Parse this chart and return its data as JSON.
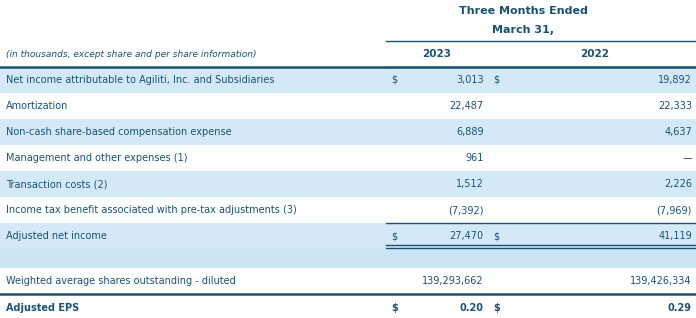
{
  "header_line1": "Three Months Ended",
  "header_line2": "March 31,",
  "col_header_label": "(in thousands, except share and per share information)",
  "col_2023": "2023",
  "col_2022": "2022",
  "rows": [
    {
      "label": "Net income attributable to Agiliti, Inc. and Subsidiaries",
      "dollar_sign_2023": "$",
      "val_2023": "3,013",
      "dollar_sign_2022": "$",
      "val_2022": "19,892",
      "highlight": true,
      "bold": false,
      "top_border": true
    },
    {
      "label": "Amortization",
      "dollar_sign_2023": "",
      "val_2023": "22,487",
      "dollar_sign_2022": "",
      "val_2022": "22,333",
      "highlight": false,
      "bold": false,
      "top_border": false
    },
    {
      "label": "Non-cash share-based compensation expense",
      "dollar_sign_2023": "",
      "val_2023": "6,889",
      "dollar_sign_2022": "",
      "val_2022": "4,637",
      "highlight": true,
      "bold": false,
      "top_border": false
    },
    {
      "label": "Management and other expenses (1)",
      "dollar_sign_2023": "",
      "val_2023": "961",
      "dollar_sign_2022": "",
      "val_2022": "—",
      "highlight": false,
      "bold": false,
      "top_border": false
    },
    {
      "label": "Transaction costs (2)",
      "dollar_sign_2023": "",
      "val_2023": "1,512",
      "dollar_sign_2022": "",
      "val_2022": "2,226",
      "highlight": true,
      "bold": false,
      "top_border": false
    },
    {
      "label": "Income tax benefit associated with pre-tax adjustments (3)",
      "dollar_sign_2023": "",
      "val_2023": "(7,392)",
      "dollar_sign_2022": "",
      "val_2022": "(7,969)",
      "highlight": false,
      "bold": false,
      "top_border": false
    },
    {
      "label": "Adjusted net income",
      "dollar_sign_2023": "$",
      "val_2023": "27,470",
      "dollar_sign_2022": "$",
      "val_2022": "41,119",
      "highlight": true,
      "bold": false,
      "top_border": true,
      "double_bottom": true
    }
  ],
  "rows2": [
    {
      "label": "Weighted average shares outstanding - diluted",
      "dollar_sign_2023": "",
      "val_2023": "139,293,662",
      "dollar_sign_2022": "",
      "val_2022": "139,426,334",
      "highlight": false,
      "bold": false,
      "top_border": false
    },
    {
      "label": "Adjusted EPS",
      "dollar_sign_2023": "$",
      "val_2023": "0.20",
      "dollar_sign_2022": "$",
      "val_2022": "0.29",
      "highlight": false,
      "bold": true,
      "top_border": true
    }
  ],
  "colors": {
    "text_dark": "#1a5276",
    "highlight_bg": "#d4e9f7",
    "white_bg": "#ffffff",
    "border_color": "#1a5276",
    "light_blue_section": "#cce5f5"
  },
  "figsize": [
    6.96,
    3.18
  ],
  "dpi": 100
}
